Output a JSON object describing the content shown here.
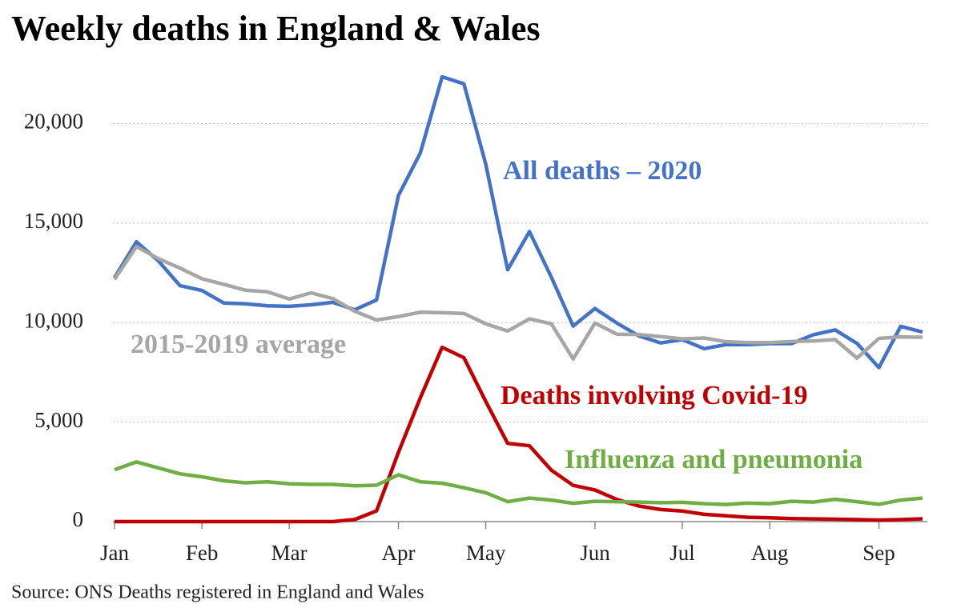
{
  "chart_data": {
    "type": "line",
    "title": "Weekly deaths in England & Wales",
    "source": "Source: ONS Deaths registered in England and Wales",
    "categories": [
      "Jan",
      null,
      null,
      null,
      "Feb",
      null,
      null,
      null,
      "Mar",
      null,
      null,
      null,
      null,
      "Apr",
      null,
      null,
      null,
      "May",
      null,
      null,
      null,
      null,
      "Jun",
      null,
      null,
      null,
      "Jul",
      null,
      null,
      null,
      "Aug",
      null,
      null,
      null,
      null,
      "Sep",
      null,
      null
    ],
    "series": [
      {
        "name": "All deaths – 2020",
        "color": "#4472c4",
        "values": [
          12254,
          14058,
          13115,
          11856,
          11612,
          10986,
          10944,
          10841,
          10816,
          10895,
          11019,
          10645,
          11141,
          16387,
          18516,
          22351,
          21997,
          17953,
          12657,
          14573,
          12288,
          9824,
          10709,
          9976,
          9339,
          8979,
          9140,
          8690,
          8891,
          8891,
          8946,
          8945,
          9392,
          9631,
          8954,
          7739,
          9811,
          9523
        ]
      },
      {
        "name": "2015-2019 average",
        "color": "#a6a6a6",
        "values": [
          12175,
          13822,
          13216,
          12736,
          12206,
          11925,
          11627,
          11548,
          11183,
          11498,
          11205,
          10573,
          10130,
          10305,
          10520,
          10497,
          10458,
          9941,
          9576,
          10188,
          9940,
          8171,
          9977,
          9417,
          9404,
          9293,
          9180,
          9225,
          9040,
          8995,
          8993,
          9051,
          9073,
          9146,
          8218,
          9207,
          9281,
          9261
        ]
      },
      {
        "name": "Deaths involving Covid-19",
        "color": "#c00000",
        "values": [
          0,
          0,
          0,
          0,
          0,
          0,
          0,
          0,
          0,
          0,
          0,
          103,
          539,
          3475,
          6213,
          8758,
          8237,
          6035,
          3930,
          3810,
          2589,
          1822,
          1588,
          1114,
          783,
          606,
          532,
          366,
          295,
          217,
          193,
          152,
          138,
          121,
          101,
          78,
          99,
          139
        ]
      },
      {
        "name": "Influenza and pneumonia",
        "color": "#70ad47",
        "values": [
          2600,
          3000,
          2700,
          2400,
          2250,
          2050,
          1950,
          2000,
          1900,
          1870,
          1870,
          1800,
          1830,
          2350,
          2000,
          1930,
          1700,
          1450,
          1000,
          1180,
          1080,
          920,
          1020,
          1000,
          980,
          950,
          970,
          900,
          860,
          930,
          900,
          1020,
          980,
          1120,
          1000,
          870,
          1080,
          1180
        ]
      }
    ],
    "ylim": [
      0,
      22500
    ],
    "yticks": [
      0,
      {
        "value": 5000,
        "label": "5,000"
      },
      {
        "value": 10000,
        "label": "10,000"
      },
      {
        "value": 15000,
        "label": "15,000"
      },
      {
        "value": 20000,
        "label": "20,000"
      }
    ],
    "grid": true
  }
}
